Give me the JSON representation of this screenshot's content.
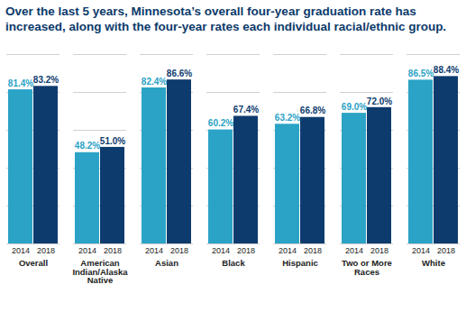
{
  "chart_data": {
    "type": "bar",
    "title": "Over the last 5 years, Minnesota’s overall four-year graduation rate has increased, along with the four-year rates each individual racial/ethnic group.",
    "categories": [
      "Overall",
      "American Indian/Alaska Native",
      "Asian",
      "Black",
      "Hispanic",
      "Two or More Races",
      "White"
    ],
    "series": [
      {
        "name": "2014",
        "color": "#2ba3c6",
        "values": [
          81.4,
          48.2,
          82.4,
          60.2,
          63.2,
          69.0,
          86.5
        ],
        "value_labels": [
          "81.4%",
          "48.2%",
          "82.4%",
          "60.2%",
          "63.2%",
          "69.0%",
          "86.5%"
        ]
      },
      {
        "name": "2018",
        "color": "#0d3b6e",
        "values": [
          83.2,
          51.0,
          86.6,
          67.4,
          66.8,
          72.0,
          88.4
        ],
        "value_labels": [
          "83.2%",
          "51.0%",
          "86.6%",
          "67.4%",
          "66.8%",
          "72.0%",
          "88.4%"
        ]
      }
    ],
    "ylim": [
      0,
      100
    ],
    "yticks": [
      0,
      20,
      40,
      60,
      80,
      100
    ],
    "grid": true,
    "data_labels": true,
    "tick_labels": "x"
  }
}
